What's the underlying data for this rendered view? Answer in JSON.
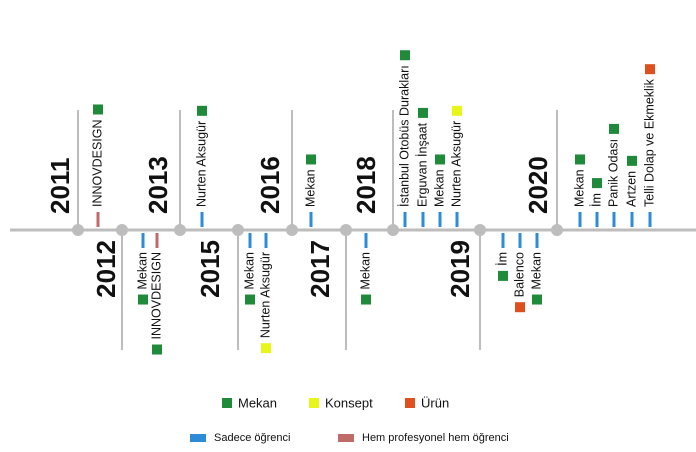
{
  "timeline": {
    "groups": [
      {
        "year": "2011",
        "items": [
          {
            "label": "INNOVDESIGN",
            "color": "#1f8a3a",
            "tick": "#c06a6a"
          }
        ]
      },
      {
        "year": "2012",
        "items": [
          {
            "label": "Mekan",
            "color": "#1f8a3a",
            "tick": "#2e8bd8"
          },
          {
            "label": "INNOVDESIGN",
            "color": "#1f8a3a",
            "tick": "#c06a6a"
          }
        ]
      },
      {
        "year": "2013",
        "items": [
          {
            "label": "Nurten Aksugür",
            "color": "#1f8a3a",
            "tick": "#2e8bd8"
          }
        ]
      },
      {
        "year": "2015",
        "items": [
          {
            "label": "Mekan",
            "color": "#1f8a3a",
            "tick": "#2e8bd8"
          },
          {
            "label": "Nurten Aksugür",
            "color": "#e8f518",
            "tick": "#2e8bd8"
          }
        ]
      },
      {
        "year": "2016",
        "items": [
          {
            "label": "Mekan",
            "color": "#1f8a3a",
            "tick": "#2e8bd8"
          }
        ]
      },
      {
        "year": "2017",
        "items": [
          {
            "label": "Mekan",
            "color": "#1f8a3a",
            "tick": "#2e8bd8"
          }
        ]
      },
      {
        "year": "2018",
        "items": [
          {
            "label": "İstanbul Otobüs Durakları",
            "color": "#1f8a3a",
            "tick": "#2e8bd8"
          },
          {
            "label": "Erguvan İnşaat",
            "color": "#1f8a3a",
            "tick": "#2e8bd8"
          },
          {
            "label": "Mekan",
            "color": "#1f8a3a",
            "tick": "#2e8bd8"
          },
          {
            "label": "Nurten Aksugür",
            "color": "#e8f518",
            "tick": "#2e8bd8"
          }
        ]
      },
      {
        "year": "2019",
        "items": [
          {
            "label": "İm",
            "color": "#1f8a3a",
            "tick": "#2e8bd8"
          },
          {
            "label": "Balenco",
            "color": "#e0501e",
            "tick": "#2e8bd8"
          },
          {
            "label": "Mekan",
            "color": "#1f8a3a",
            "tick": "#2e8bd8"
          }
        ]
      },
      {
        "year": "2020",
        "items": [
          {
            "label": "Mekan",
            "color": "#1f8a3a",
            "tick": "#2e8bd8"
          },
          {
            "label": "İm",
            "color": "#1f8a3a",
            "tick": "#2e8bd8"
          },
          {
            "label": "Panik Odası",
            "color": "#1f8a3a",
            "tick": "#2e8bd8"
          },
          {
            "label": "Artzen",
            "color": "#1f8a3a",
            "tick": "#2e8bd8"
          },
          {
            "label": "Telli Dolap ve Ekmeklik",
            "color": "#e0501e",
            "tick": "#2e8bd8"
          }
        ]
      }
    ]
  },
  "legend": {
    "types": [
      {
        "label": "Mekan",
        "color": "#1f8a3a"
      },
      {
        "label": "Konsept",
        "color": "#e8f518"
      },
      {
        "label": "Ürün",
        "color": "#e0501e"
      }
    ],
    "roles": [
      {
        "label": "Sadece öğrenci",
        "color": "#2e8bd8"
      },
      {
        "label": "Hem profesyonel hem öğrenci",
        "color": "#c06a6a"
      }
    ]
  }
}
